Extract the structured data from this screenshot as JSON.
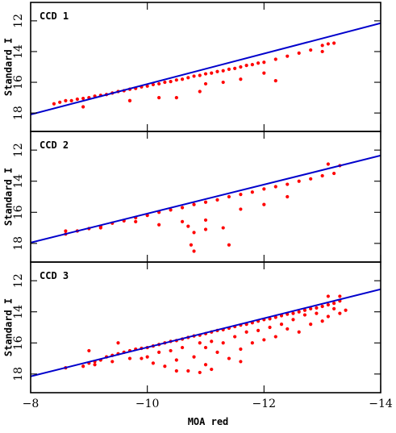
{
  "chart_data": [
    {
      "type": "scatter",
      "title": "CCD 1",
      "ylabel": "Standard I",
      "xlabel": "",
      "xlim": [
        -8,
        -14
      ],
      "ylim": [
        19.2,
        10.8
      ],
      "xticks": [
        -8,
        -10,
        -12,
        -14
      ],
      "xtick_labels": [
        "",
        "",
        "",
        ""
      ],
      "yticks": [
        12,
        14,
        16,
        18
      ],
      "ytick_labels": [
        "12",
        "14",
        "16",
        "18"
      ],
      "colors": {
        "points": "#ff0000",
        "fit": "#0000cc"
      },
      "fit_line": {
        "x": [
          -8,
          -14
        ],
        "y": [
          18.1,
          12.15
        ]
      },
      "series": [
        {
          "type": "scatter",
          "points": [
            [
              -8.4,
              17.4
            ],
            [
              -8.5,
              17.3
            ],
            [
              -8.6,
              17.2
            ],
            [
              -8.7,
              17.2
            ],
            [
              -8.8,
              17.1
            ],
            [
              -8.9,
              17.05
            ],
            [
              -9.0,
              17.0
            ],
            [
              -9.1,
              16.9
            ],
            [
              -9.2,
              16.85
            ],
            [
              -9.3,
              16.8
            ],
            [
              -9.4,
              16.7
            ],
            [
              -9.5,
              16.6
            ],
            [
              -9.6,
              16.55
            ],
            [
              -9.7,
              16.45
            ],
            [
              -9.8,
              16.4
            ],
            [
              -9.9,
              16.3
            ],
            [
              -10.0,
              16.25
            ],
            [
              -10.1,
              16.15
            ],
            [
              -10.2,
              16.1
            ],
            [
              -10.3,
              16.0
            ],
            [
              -10.4,
              15.95
            ],
            [
              -10.5,
              15.85
            ],
            [
              -10.6,
              15.8
            ],
            [
              -10.7,
              15.7
            ],
            [
              -10.8,
              15.6
            ],
            [
              -10.9,
              15.55
            ],
            [
              -11.0,
              15.45
            ],
            [
              -11.1,
              15.4
            ],
            [
              -11.2,
              15.3
            ],
            [
              -11.3,
              15.25
            ],
            [
              -11.4,
              15.15
            ],
            [
              -11.5,
              15.1
            ],
            [
              -11.6,
              15.0
            ],
            [
              -11.7,
              14.9
            ],
            [
              -11.8,
              14.85
            ],
            [
              -11.9,
              14.75
            ],
            [
              -12.0,
              14.7
            ],
            [
              -12.2,
              14.5
            ],
            [
              -12.4,
              14.3
            ],
            [
              -12.6,
              14.1
            ],
            [
              -12.8,
              13.9
            ],
            [
              -13.0,
              13.6
            ],
            [
              -13.1,
              13.5
            ],
            [
              -13.2,
              13.45
            ],
            [
              -9.7,
              17.2
            ],
            [
              -10.2,
              17.0
            ],
            [
              -10.5,
              17.0
            ],
            [
              -10.9,
              16.6
            ],
            [
              -11.0,
              16.1
            ],
            [
              -11.3,
              16.0
            ],
            [
              -11.6,
              15.8
            ],
            [
              -12.0,
              15.4
            ],
            [
              -12.2,
              15.9
            ],
            [
              -13.0,
              14.0
            ],
            [
              -8.9,
              17.6
            ],
            [
              -9.7,
              17.2
            ]
          ]
        }
      ]
    },
    {
      "type": "scatter",
      "title": "CCD 2",
      "ylabel": "Standard I",
      "xlabel": "",
      "xlim": [
        -8,
        -14
      ],
      "ylim": [
        19.2,
        10.8
      ],
      "xticks": [
        -8,
        -10,
        -12,
        -14
      ],
      "xtick_labels": [
        "",
        "",
        "",
        ""
      ],
      "yticks": [
        12,
        14,
        16,
        18
      ],
      "ytick_labels": [
        "12",
        "14",
        "16",
        "18"
      ],
      "colors": {
        "points": "#ff0000",
        "fit": "#0000cc"
      },
      "fit_line": {
        "x": [
          -8,
          -14
        ],
        "y": [
          17.95,
          12.35
        ]
      },
      "series": [
        {
          "type": "scatter",
          "points": [
            [
              -8.6,
              17.4
            ],
            [
              -8.8,
              17.2
            ],
            [
              -9.0,
              17.05
            ],
            [
              -9.2,
              16.9
            ],
            [
              -9.4,
              16.7
            ],
            [
              -9.6,
              16.55
            ],
            [
              -9.8,
              16.35
            ],
            [
              -10.0,
              16.2
            ],
            [
              -10.2,
              16.0
            ],
            [
              -10.4,
              15.85
            ],
            [
              -10.6,
              15.7
            ],
            [
              -10.8,
              15.5
            ],
            [
              -11.0,
              15.35
            ],
            [
              -11.2,
              15.2
            ],
            [
              -11.4,
              15.0
            ],
            [
              -11.6,
              14.85
            ],
            [
              -11.8,
              14.7
            ],
            [
              -12.0,
              14.5
            ],
            [
              -12.2,
              14.35
            ],
            [
              -12.4,
              14.2
            ],
            [
              -12.6,
              14.0
            ],
            [
              -12.8,
              13.85
            ],
            [
              -13.0,
              13.65
            ],
            [
              -13.2,
              13.5
            ],
            [
              -13.3,
              13.0
            ],
            [
              -13.1,
              12.9
            ],
            [
              -10.6,
              16.6
            ],
            [
              -10.7,
              16.9
            ],
            [
              -10.8,
              17.3
            ],
            [
              -10.75,
              18.1
            ],
            [
              -10.8,
              18.5
            ],
            [
              -11.0,
              16.5
            ],
            [
              -11.0,
              17.1
            ],
            [
              -11.3,
              17.0
            ],
            [
              -11.4,
              18.1
            ],
            [
              -11.6,
              15.8
            ],
            [
              -10.2,
              16.8
            ],
            [
              -9.8,
              16.6
            ],
            [
              -9.2,
              17.0
            ],
            [
              -8.6,
              17.2
            ],
            [
              -8.8,
              17.2
            ],
            [
              -12.0,
              15.5
            ],
            [
              -12.4,
              15.0
            ]
          ]
        }
      ]
    },
    {
      "type": "scatter",
      "title": "CCD 3",
      "ylabel": "Standard I",
      "xlabel": "MOA red",
      "xlim": [
        -8,
        -14
      ],
      "ylim": [
        19.2,
        10.8
      ],
      "xticks": [
        -8,
        -10,
        -12,
        -14
      ],
      "xtick_labels": [
        "−8",
        "−10",
        "−12",
        "−14"
      ],
      "yticks": [
        12,
        14,
        16,
        18
      ],
      "ytick_labels": [
        "12",
        "14",
        "16",
        "18"
      ],
      "colors": {
        "points": "#ff0000",
        "fit": "#0000cc"
      },
      "fit_line": {
        "x": [
          -8,
          -14
        ],
        "y": [
          18.15,
          12.55
        ]
      },
      "series": [
        {
          "type": "scatter",
          "points": [
            [
              -8.6,
              17.6
            ],
            [
              -8.9,
              17.5
            ],
            [
              -9.0,
              17.3
            ],
            [
              -9.1,
              17.2
            ],
            [
              -9.2,
              17.1
            ],
            [
              -9.3,
              16.9
            ],
            [
              -9.4,
              16.8
            ],
            [
              -9.5,
              16.7
            ],
            [
              -9.6,
              16.6
            ],
            [
              -9.7,
              16.5
            ],
            [
              -9.8,
              16.4
            ],
            [
              -9.9,
              16.35
            ],
            [
              -10.0,
              16.3
            ],
            [
              -10.1,
              16.2
            ],
            [
              -10.2,
              16.1
            ],
            [
              -10.3,
              16.0
            ],
            [
              -10.4,
              15.9
            ],
            [
              -10.5,
              15.85
            ],
            [
              -10.6,
              15.75
            ],
            [
              -10.7,
              15.65
            ],
            [
              -10.8,
              15.55
            ],
            [
              -10.9,
              15.5
            ],
            [
              -11.0,
              15.4
            ],
            [
              -11.1,
              15.3
            ],
            [
              -11.2,
              15.2
            ],
            [
              -11.3,
              15.15
            ],
            [
              -11.4,
              15.05
            ],
            [
              -11.5,
              14.95
            ],
            [
              -11.6,
              14.85
            ],
            [
              -11.7,
              14.8
            ],
            [
              -11.8,
              14.7
            ],
            [
              -11.9,
              14.6
            ],
            [
              -12.0,
              14.5
            ],
            [
              -12.1,
              14.45
            ],
            [
              -12.2,
              14.35
            ],
            [
              -12.3,
              14.25
            ],
            [
              -12.4,
              14.15
            ],
            [
              -12.5,
              14.1
            ],
            [
              -12.6,
              14.0
            ],
            [
              -12.7,
              13.9
            ],
            [
              -12.8,
              13.8
            ],
            [
              -12.9,
              13.75
            ],
            [
              -13.0,
              13.65
            ],
            [
              -13.1,
              13.55
            ],
            [
              -13.2,
              13.45
            ],
            [
              -13.3,
              13.3
            ],
            [
              -9.0,
              16.5
            ],
            [
              -9.1,
              17.4
            ],
            [
              -9.4,
              17.2
            ],
            [
              -9.5,
              16.0
            ],
            [
              -9.7,
              17.0
            ],
            [
              -9.9,
              17.0
            ],
            [
              -10.0,
              16.9
            ],
            [
              -10.1,
              17.3
            ],
            [
              -10.2,
              16.6
            ],
            [
              -10.3,
              17.5
            ],
            [
              -10.4,
              16.5
            ],
            [
              -10.5,
              17.1
            ],
            [
              -10.6,
              16.3
            ],
            [
              -10.7,
              17.8
            ],
            [
              -10.8,
              16.9
            ],
            [
              -10.9,
              16.0
            ],
            [
              -11.0,
              17.4
            ],
            [
              -11.0,
              16.3
            ],
            [
              -11.1,
              15.9
            ],
            [
              -11.2,
              16.6
            ],
            [
              -11.3,
              16.0
            ],
            [
              -11.4,
              17.0
            ],
            [
              -11.5,
              15.6
            ],
            [
              -11.6,
              16.4
            ],
            [
              -11.7,
              15.3
            ],
            [
              -11.8,
              16.0
            ],
            [
              -11.9,
              15.2
            ],
            [
              -12.0,
              15.8
            ],
            [
              -12.1,
              15.0
            ],
            [
              -12.2,
              15.6
            ],
            [
              -12.3,
              14.8
            ],
            [
              -12.4,
              15.1
            ],
            [
              -12.5,
              14.5
            ],
            [
              -12.6,
              15.3
            ],
            [
              -12.7,
              14.2
            ],
            [
              -12.8,
              14.8
            ],
            [
              -12.9,
              14.1
            ],
            [
              -13.0,
              14.6
            ],
            [
              -13.1,
              14.3
            ],
            [
              -13.2,
              13.8
            ],
            [
              -13.3,
              14.1
            ],
            [
              -13.4,
              13.9
            ],
            [
              -13.1,
              13.0
            ],
            [
              -13.3,
              13.0
            ],
            [
              -10.5,
              17.8
            ],
            [
              -11.1,
              17.7
            ],
            [
              -11.6,
              17.2
            ],
            [
              -10.9,
              17.9
            ]
          ]
        }
      ]
    }
  ]
}
